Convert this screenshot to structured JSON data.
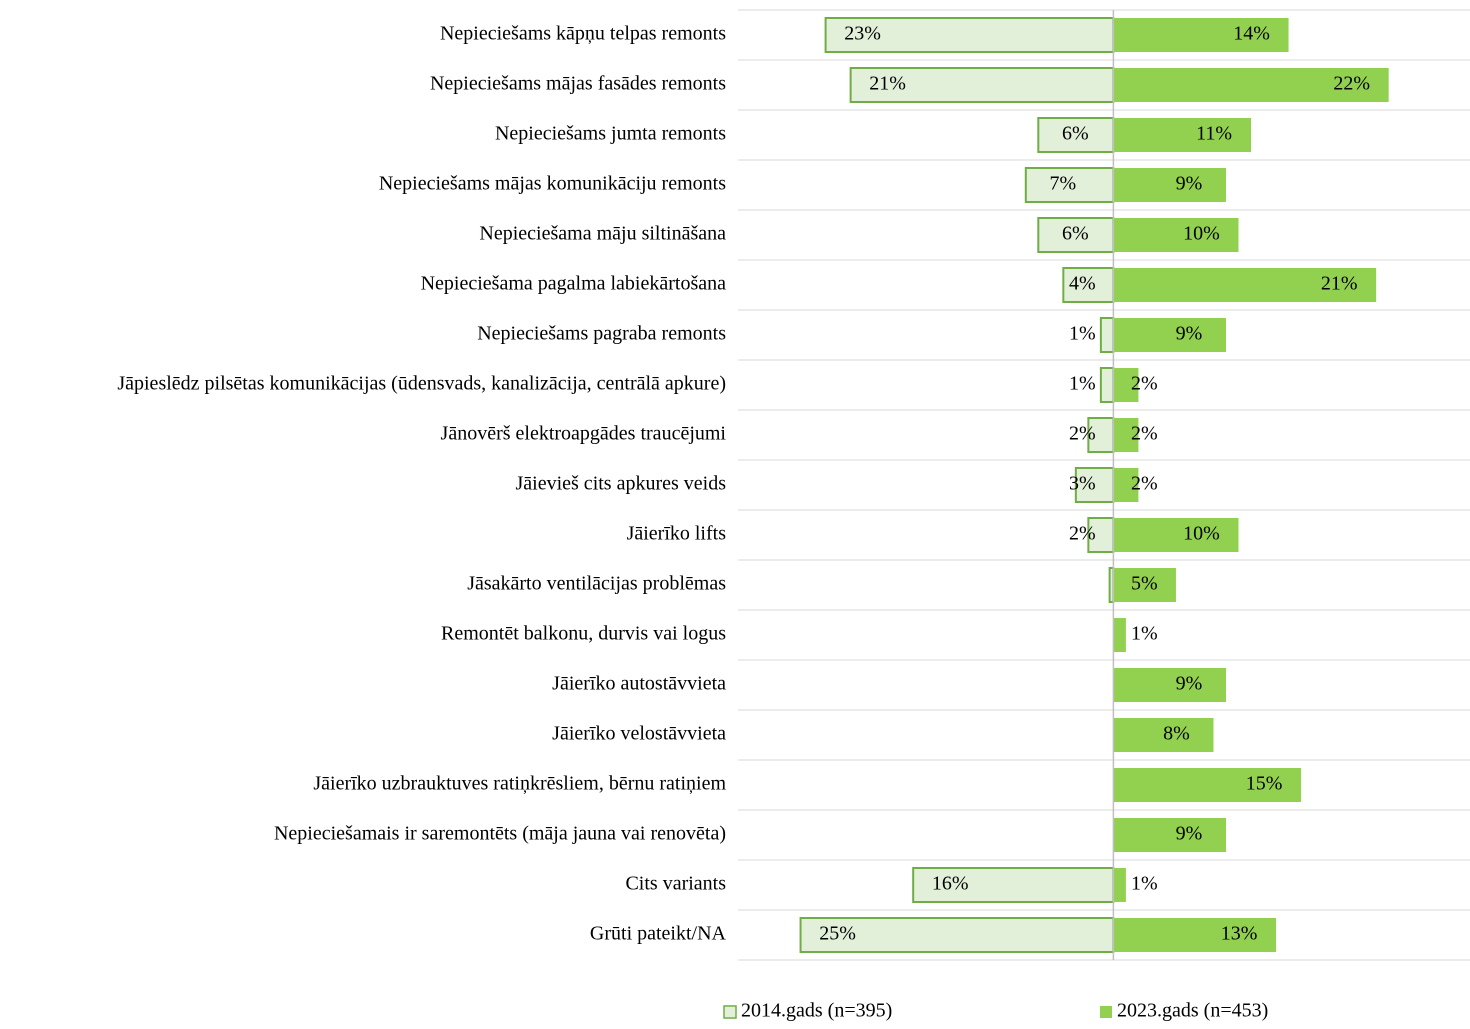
{
  "chart_data": {
    "type": "diverging-bar",
    "categories": [
      "Nepieciešams kāpņu telpas remonts",
      "Nepieciešams mājas fasādes remonts",
      "Nepieciešams jumta remonts",
      "Nepieciešams mājas komunikāciju remonts",
      "Nepieciešama māju siltināšana",
      "Nepieciešama pagalma labiekārtošana",
      "Nepieciešams pagraba remonts",
      "Jāpieslēdz pilsētas komunikācijas (ūdensvads, kanalizācija, centrālā apkure)",
      "Jānovērš elektroapgādes traucējumi",
      "Jāievieš cits apkures veids",
      "Jāierīko lifts",
      "Jāsakārto ventilācijas problēmas",
      "Remontēt balkonu, durvis vai logus",
      "Jāierīko autostāvvieta",
      "Jāierīko velostāvvieta",
      "Jāierīko uzbrauktuves ratiņkrēsliem, bērnu ratiņiem",
      "Nepieciešamais ir saremontēts (māja jauna vai renovēta)",
      "Cits variants",
      "Grūti pateikt/NA"
    ],
    "series": [
      {
        "name": "2014.gads (n=395)",
        "color": "#e2efd9",
        "edge": "#70ad47",
        "values": [
          23,
          21,
          6,
          7,
          6,
          4,
          1,
          1,
          2,
          3,
          2,
          0.3,
          null,
          null,
          null,
          null,
          null,
          16,
          25
        ],
        "value_labels": [
          "23%",
          "21%",
          "6%",
          "7%",
          "6%",
          "4%",
          "1%",
          "1%",
          "2%",
          "3%",
          "2%",
          null,
          null,
          null,
          null,
          null,
          null,
          "16%",
          "25%"
        ]
      },
      {
        "name": "2023.gads (n=453)",
        "color": "#92d050",
        "values": [
          14,
          22,
          11,
          9,
          10,
          21,
          9,
          2,
          2,
          2,
          10,
          5,
          1,
          9,
          8,
          15,
          9,
          1,
          13
        ],
        "value_labels": [
          "14%",
          "22%",
          "11%",
          "9%",
          "10%",
          "21%",
          "9%",
          "2%",
          "2%",
          "2%",
          "10%",
          "5%",
          "1%",
          "9%",
          "8%",
          "15%",
          "9%",
          "1%",
          "13%"
        ]
      }
    ],
    "xlim": [
      -30,
      28.5
    ]
  }
}
